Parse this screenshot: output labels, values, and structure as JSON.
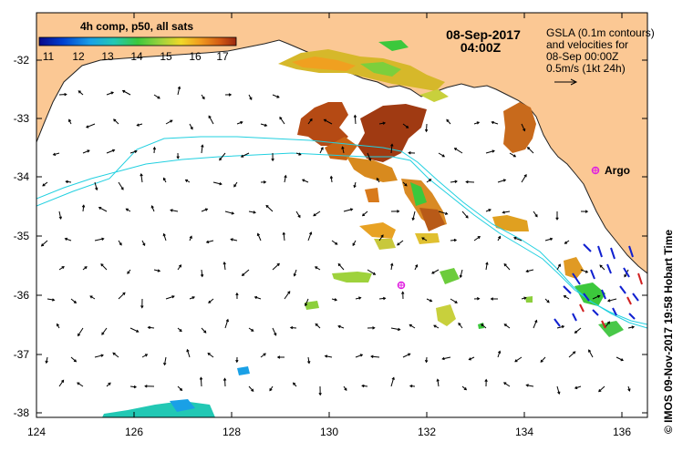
{
  "colorbar": {
    "title": "4h comp, p50, all sats",
    "ticks": [
      "11",
      "12",
      "13",
      "14",
      "15",
      "16",
      "17"
    ],
    "colors": [
      "#08088a",
      "#0040d0",
      "#1aa0e6",
      "#22c8b4",
      "#3cc83c",
      "#a0d23c",
      "#f0d828",
      "#f09a1e",
      "#d25a14",
      "#9a2810"
    ]
  },
  "timestamp": {
    "date": "08-Sep-2017",
    "time": "04:00Z"
  },
  "legend": {
    "line1": "GSLA (0.1m contours)",
    "line2": "and velocities for",
    "line3": "08-Sep 00:00Z",
    "line4": "0.5m/s (1kt 24h)"
  },
  "argo_label": "Argo",
  "y_ticks": [
    "-32",
    "-33",
    "-34",
    "-35",
    "-36",
    "-37",
    "-38"
  ],
  "x_ticks": [
    "124",
    "126",
    "128",
    "130",
    "132",
    "134",
    "136"
  ],
  "credit": "© IMOS 09-Nov-2017 19:58 Hobart Time",
  "colors": {
    "land": "#fbc894",
    "coast": "#222222",
    "contour": "#22d0e0",
    "argo": "#e020e0"
  }
}
